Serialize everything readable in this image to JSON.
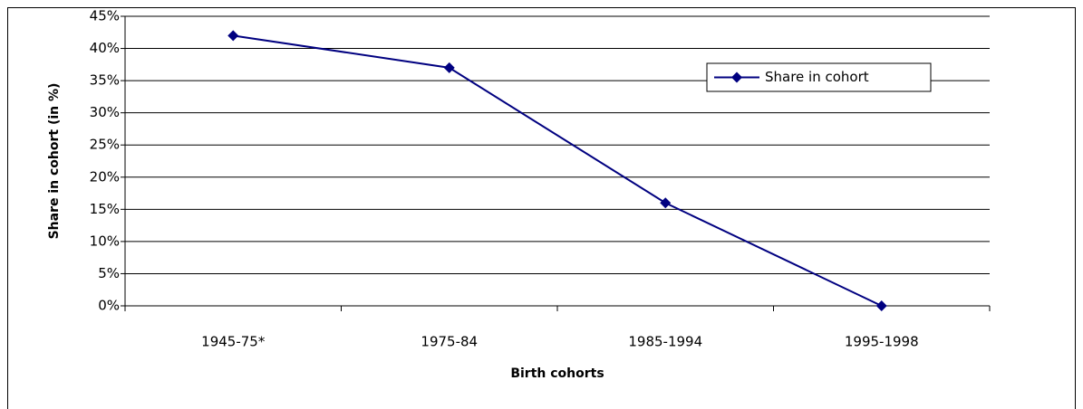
{
  "chart_data": {
    "type": "line",
    "x_label": "Birth cohorts",
    "y_label": "Share in cohort (in %)",
    "categories": [
      "1945-75*",
      "1975-84",
      "1985-1994",
      "1995-1998"
    ],
    "series": [
      {
        "name": "Share in cohort",
        "color": "#000080",
        "values": [
          42,
          37,
          16,
          0
        ]
      }
    ],
    "ylim": [
      0,
      45
    ],
    "yticks": [
      {
        "value": 0,
        "label": "0%"
      },
      {
        "value": 5,
        "label": "5%"
      },
      {
        "value": 10,
        "label": "10%"
      },
      {
        "value": 15,
        "label": "15%"
      },
      {
        "value": 20,
        "label": "20%"
      },
      {
        "value": 25,
        "label": "25%"
      },
      {
        "value": 30,
        "label": "30%"
      },
      {
        "value": 35,
        "label": "35%"
      },
      {
        "value": 40,
        "label": "40%"
      },
      {
        "value": 45,
        "label": "45%"
      }
    ],
    "grid": true,
    "legend": "top-right"
  }
}
